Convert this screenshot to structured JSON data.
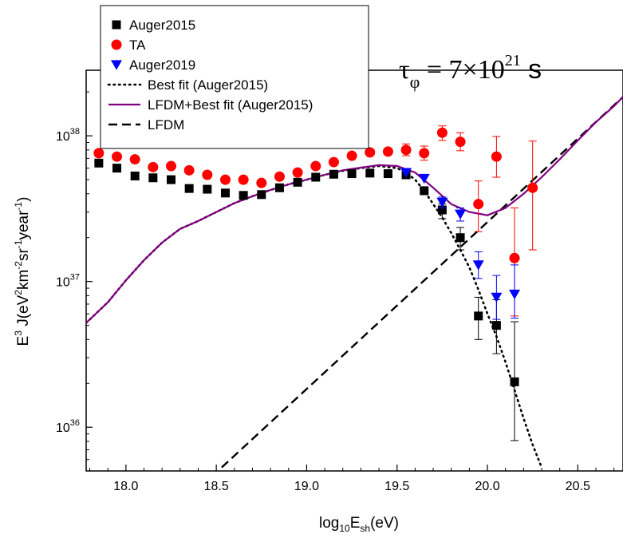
{
  "chart_data": {
    "type": "scatter",
    "xlabel": {
      "main": "log",
      "sub1": "10",
      "mid": "E",
      "sub2": "sh",
      "end": "(eV)"
    },
    "ylabel": {
      "e": "E",
      "e_sup": "3",
      "j": " J(eV",
      "s1": "2",
      "km": "km",
      "s2": "-2",
      "sr": "sr",
      "s3": "-1",
      "yr": "year",
      "s4": "-1",
      "close": ")"
    },
    "xlim": [
      17.78,
      20.75
    ],
    "ylim_log10": [
      35.7,
      38.45
    ],
    "y_scale": "log",
    "x_ticks": [
      {
        "value": 18.0,
        "label": "18.0"
      },
      {
        "value": 18.5,
        "label": "18.5"
      },
      {
        "value": 19.0,
        "label": "19.0"
      },
      {
        "value": 19.5,
        "label": "19.5"
      },
      {
        "value": 20.0,
        "label": "20.0"
      },
      {
        "value": 20.5,
        "label": "20.5"
      }
    ],
    "y_ticks": [
      {
        "log10": 36,
        "base": "10",
        "exp": "36"
      },
      {
        "log10": 37,
        "base": "10",
        "exp": "37"
      },
      {
        "log10": 38,
        "base": "10",
        "exp": "38"
      }
    ],
    "annotation": {
      "tau": "τ",
      "phi": "φ",
      "eq": " = 7×10",
      "exp": "21",
      "unit": " s"
    },
    "legend_position": "top-left",
    "series": [
      {
        "name": "Auger2015",
        "kind": "points",
        "marker": "square",
        "color": "#000000",
        "points": [
          {
            "x": 17.85,
            "y": 6.5e+37
          },
          {
            "x": 17.95,
            "y": 6e+37
          },
          {
            "x": 18.05,
            "y": 5.3e+37
          },
          {
            "x": 18.15,
            "y": 5.15e+37
          },
          {
            "x": 18.25,
            "y": 5e+37
          },
          {
            "x": 18.35,
            "y": 4.35e+37
          },
          {
            "x": 18.45,
            "y": 4.3e+37
          },
          {
            "x": 18.55,
            "y": 4.05e+37
          },
          {
            "x": 18.65,
            "y": 3.9e+37
          },
          {
            "x": 18.75,
            "y": 3.95e+37
          },
          {
            "x": 18.85,
            "y": 4.4e+37
          },
          {
            "x": 18.95,
            "y": 4.8e+37
          },
          {
            "x": 19.05,
            "y": 5.2e+37
          },
          {
            "x": 19.15,
            "y": 5.45e+37
          },
          {
            "x": 19.25,
            "y": 5.5e+37
          },
          {
            "x": 19.35,
            "y": 5.55e+37
          },
          {
            "x": 19.45,
            "y": 5.5e+37
          },
          {
            "x": 19.55,
            "y": 5.4e+37
          },
          {
            "x": 19.65,
            "y": 4.2e+37
          },
          {
            "x": 19.75,
            "y": 3.1e+37,
            "lo": 2.7e+37,
            "hi": 3.4e+37
          },
          {
            "x": 19.85,
            "y": 2e+37,
            "lo": 1.65e+37,
            "hi": 2.35e+37
          },
          {
            "x": 19.95,
            "y": 5.8e+36,
            "lo": 4e+36,
            "hi": 7.8e+36
          },
          {
            "x": 20.05,
            "y": 5e+36,
            "lo": 3.2e+36,
            "hi": 7.5e+36
          },
          {
            "x": 20.15,
            "y": 2.05e+36,
            "lo": 8.1e+35,
            "hi": 5.3e+36
          }
        ]
      },
      {
        "name": "TA",
        "kind": "points",
        "marker": "circle",
        "color": "#ff0000",
        "points": [
          {
            "x": 17.85,
            "y": 7.6e+37
          },
          {
            "x": 17.95,
            "y": 7.2e+37
          },
          {
            "x": 18.05,
            "y": 6.9e+37
          },
          {
            "x": 18.15,
            "y": 6.1e+37
          },
          {
            "x": 18.25,
            "y": 6.2e+37
          },
          {
            "x": 18.35,
            "y": 5.8e+37
          },
          {
            "x": 18.45,
            "y": 5.4e+37
          },
          {
            "x": 18.55,
            "y": 5e+37
          },
          {
            "x": 18.65,
            "y": 5e+37
          },
          {
            "x": 18.75,
            "y": 4.75e+37
          },
          {
            "x": 18.85,
            "y": 5.25e+37
          },
          {
            "x": 18.95,
            "y": 5.6e+37
          },
          {
            "x": 19.05,
            "y": 6.2e+37
          },
          {
            "x": 19.15,
            "y": 6.6e+37
          },
          {
            "x": 19.25,
            "y": 7.3e+37
          },
          {
            "x": 19.35,
            "y": 7.7e+37
          },
          {
            "x": 19.45,
            "y": 7.8e+37
          },
          {
            "x": 19.55,
            "y": 8e+37,
            "lo": 7.3e+37,
            "hi": 8.8e+37
          },
          {
            "x": 19.65,
            "y": 7.6e+37,
            "lo": 6.8e+37,
            "hi": 8.5e+37
          },
          {
            "x": 19.75,
            "y": 1.05e+38,
            "lo": 9.3e+37,
            "hi": 1.17e+38
          },
          {
            "x": 19.85,
            "y": 9.1e+37,
            "lo": 7.9e+37,
            "hi": 1.05e+38
          },
          {
            "x": 19.95,
            "y": 3.4e+37,
            "lo": 2.2e+37,
            "hi": 4.9e+37
          },
          {
            "x": 20.05,
            "y": 7.2e+37,
            "lo": 5.2e+37,
            "hi": 9.9e+37
          },
          {
            "x": 20.15,
            "y": 1.45e+37,
            "lo": 5.8e+36,
            "hi": 3.2e+37
          },
          {
            "x": 20.25,
            "y": 4.4e+37,
            "lo": 1.65e+37,
            "hi": 9.2e+37
          }
        ]
      },
      {
        "name": "Auger2019",
        "kind": "points",
        "marker": "triangle-down",
        "color": "#0000ff",
        "points": [
          {
            "x": 19.55,
            "y": 5.6e+37
          },
          {
            "x": 19.65,
            "y": 5.1e+37
          },
          {
            "x": 19.75,
            "y": 3.5e+37,
            "lo": 3.2e+37,
            "hi": 3.8e+37
          },
          {
            "x": 19.85,
            "y": 2.9e+37,
            "lo": 2.6e+37,
            "hi": 3.2e+37
          },
          {
            "x": 19.95,
            "y": 1.3e+37,
            "lo": 1.05e+37,
            "hi": 1.6e+37
          },
          {
            "x": 20.05,
            "y": 7.8e+36,
            "lo": 5.5e+36,
            "hi": 1.1e+37
          },
          {
            "x": 20.15,
            "y": 8.2e+36,
            "lo": 5.6e+36,
            "hi": 1.3e+37
          }
        ]
      },
      {
        "name": "Best fit (Auger2015)",
        "kind": "line",
        "style": "dotted",
        "color": "#000000",
        "points": [
          {
            "x": 17.78,
            "y": 5.2e+36
          },
          {
            "x": 17.9,
            "y": 7.2e+36
          },
          {
            "x": 18.0,
            "y": 1.02e+37
          },
          {
            "x": 18.1,
            "y": 1.4e+37
          },
          {
            "x": 18.2,
            "y": 1.85e+37
          },
          {
            "x": 18.3,
            "y": 2.3e+37
          },
          {
            "x": 18.4,
            "y": 2.6e+37
          },
          {
            "x": 18.5,
            "y": 3e+37
          },
          {
            "x": 18.6,
            "y": 3.45e+37
          },
          {
            "x": 18.7,
            "y": 3.85e+37
          },
          {
            "x": 18.8,
            "y": 4.25e+37
          },
          {
            "x": 18.9,
            "y": 4.65e+37
          },
          {
            "x": 19.0,
            "y": 5e+37
          },
          {
            "x": 19.1,
            "y": 5.4e+37
          },
          {
            "x": 19.2,
            "y": 5.75e+37
          },
          {
            "x": 19.3,
            "y": 6e+37
          },
          {
            "x": 19.4,
            "y": 6.2e+37
          },
          {
            "x": 19.5,
            "y": 6e+37
          },
          {
            "x": 19.55,
            "y": 5.6e+37
          },
          {
            "x": 19.6,
            "y": 5e+37
          },
          {
            "x": 19.65,
            "y": 4.2e+37
          },
          {
            "x": 19.7,
            "y": 3.4e+37
          },
          {
            "x": 19.75,
            "y": 2.75e+37
          },
          {
            "x": 19.8,
            "y": 2.15e+37
          },
          {
            "x": 19.85,
            "y": 1.65e+37
          },
          {
            "x": 19.9,
            "y": 1.25e+37
          },
          {
            "x": 19.95,
            "y": 8.8e+36
          },
          {
            "x": 20.0,
            "y": 6e+36
          },
          {
            "x": 20.05,
            "y": 4.2e+36
          },
          {
            "x": 20.1,
            "y": 2.8e+36
          },
          {
            "x": 20.15,
            "y": 1.8e+36
          },
          {
            "x": 20.2,
            "y": 1.15e+36
          },
          {
            "x": 20.25,
            "y": 7.6e+35
          },
          {
            "x": 20.3,
            "y": 5.3e+35
          }
        ]
      },
      {
        "name": "LFDM+Best fit (Auger2015)",
        "kind": "line",
        "style": "solid",
        "color": "#800080",
        "points": [
          {
            "x": 17.78,
            "y": 5.2e+36
          },
          {
            "x": 17.9,
            "y": 7.2e+36
          },
          {
            "x": 18.0,
            "y": 1.02e+37
          },
          {
            "x": 18.1,
            "y": 1.4e+37
          },
          {
            "x": 18.2,
            "y": 1.85e+37
          },
          {
            "x": 18.3,
            "y": 2.3e+37
          },
          {
            "x": 18.4,
            "y": 2.6e+37
          },
          {
            "x": 18.5,
            "y": 3e+37
          },
          {
            "x": 18.6,
            "y": 3.45e+37
          },
          {
            "x": 18.7,
            "y": 3.85e+37
          },
          {
            "x": 18.8,
            "y": 4.25e+37
          },
          {
            "x": 18.9,
            "y": 4.65e+37
          },
          {
            "x": 19.0,
            "y": 5e+37
          },
          {
            "x": 19.1,
            "y": 5.4e+37
          },
          {
            "x": 19.2,
            "y": 5.8e+37
          },
          {
            "x": 19.3,
            "y": 6.05e+37
          },
          {
            "x": 19.4,
            "y": 6.3e+37
          },
          {
            "x": 19.5,
            "y": 6.2e+37
          },
          {
            "x": 19.6,
            "y": 5.6e+37
          },
          {
            "x": 19.7,
            "y": 4.4e+37
          },
          {
            "x": 19.8,
            "y": 3.4e+37
          },
          {
            "x": 19.9,
            "y": 3e+37
          },
          {
            "x": 20.0,
            "y": 2.85e+37
          },
          {
            "x": 20.1,
            "y": 3.2e+37
          },
          {
            "x": 20.2,
            "y": 4e+37
          },
          {
            "x": 20.3,
            "y": 5.2e+37
          },
          {
            "x": 20.4,
            "y": 6.9e+37
          },
          {
            "x": 20.5,
            "y": 9.3e+37
          },
          {
            "x": 20.6,
            "y": 1.24e+38
          },
          {
            "x": 20.7,
            "y": 1.6e+38
          },
          {
            "x": 20.75,
            "y": 1.85e+38
          }
        ]
      },
      {
        "name": "LFDM",
        "kind": "line",
        "style": "dashed",
        "color": "#000000",
        "points": [
          {
            "x": 18.53,
            "y": 5.3e+35
          },
          {
            "x": 20.75,
            "y": 1.85e+38
          }
        ]
      }
    ]
  }
}
